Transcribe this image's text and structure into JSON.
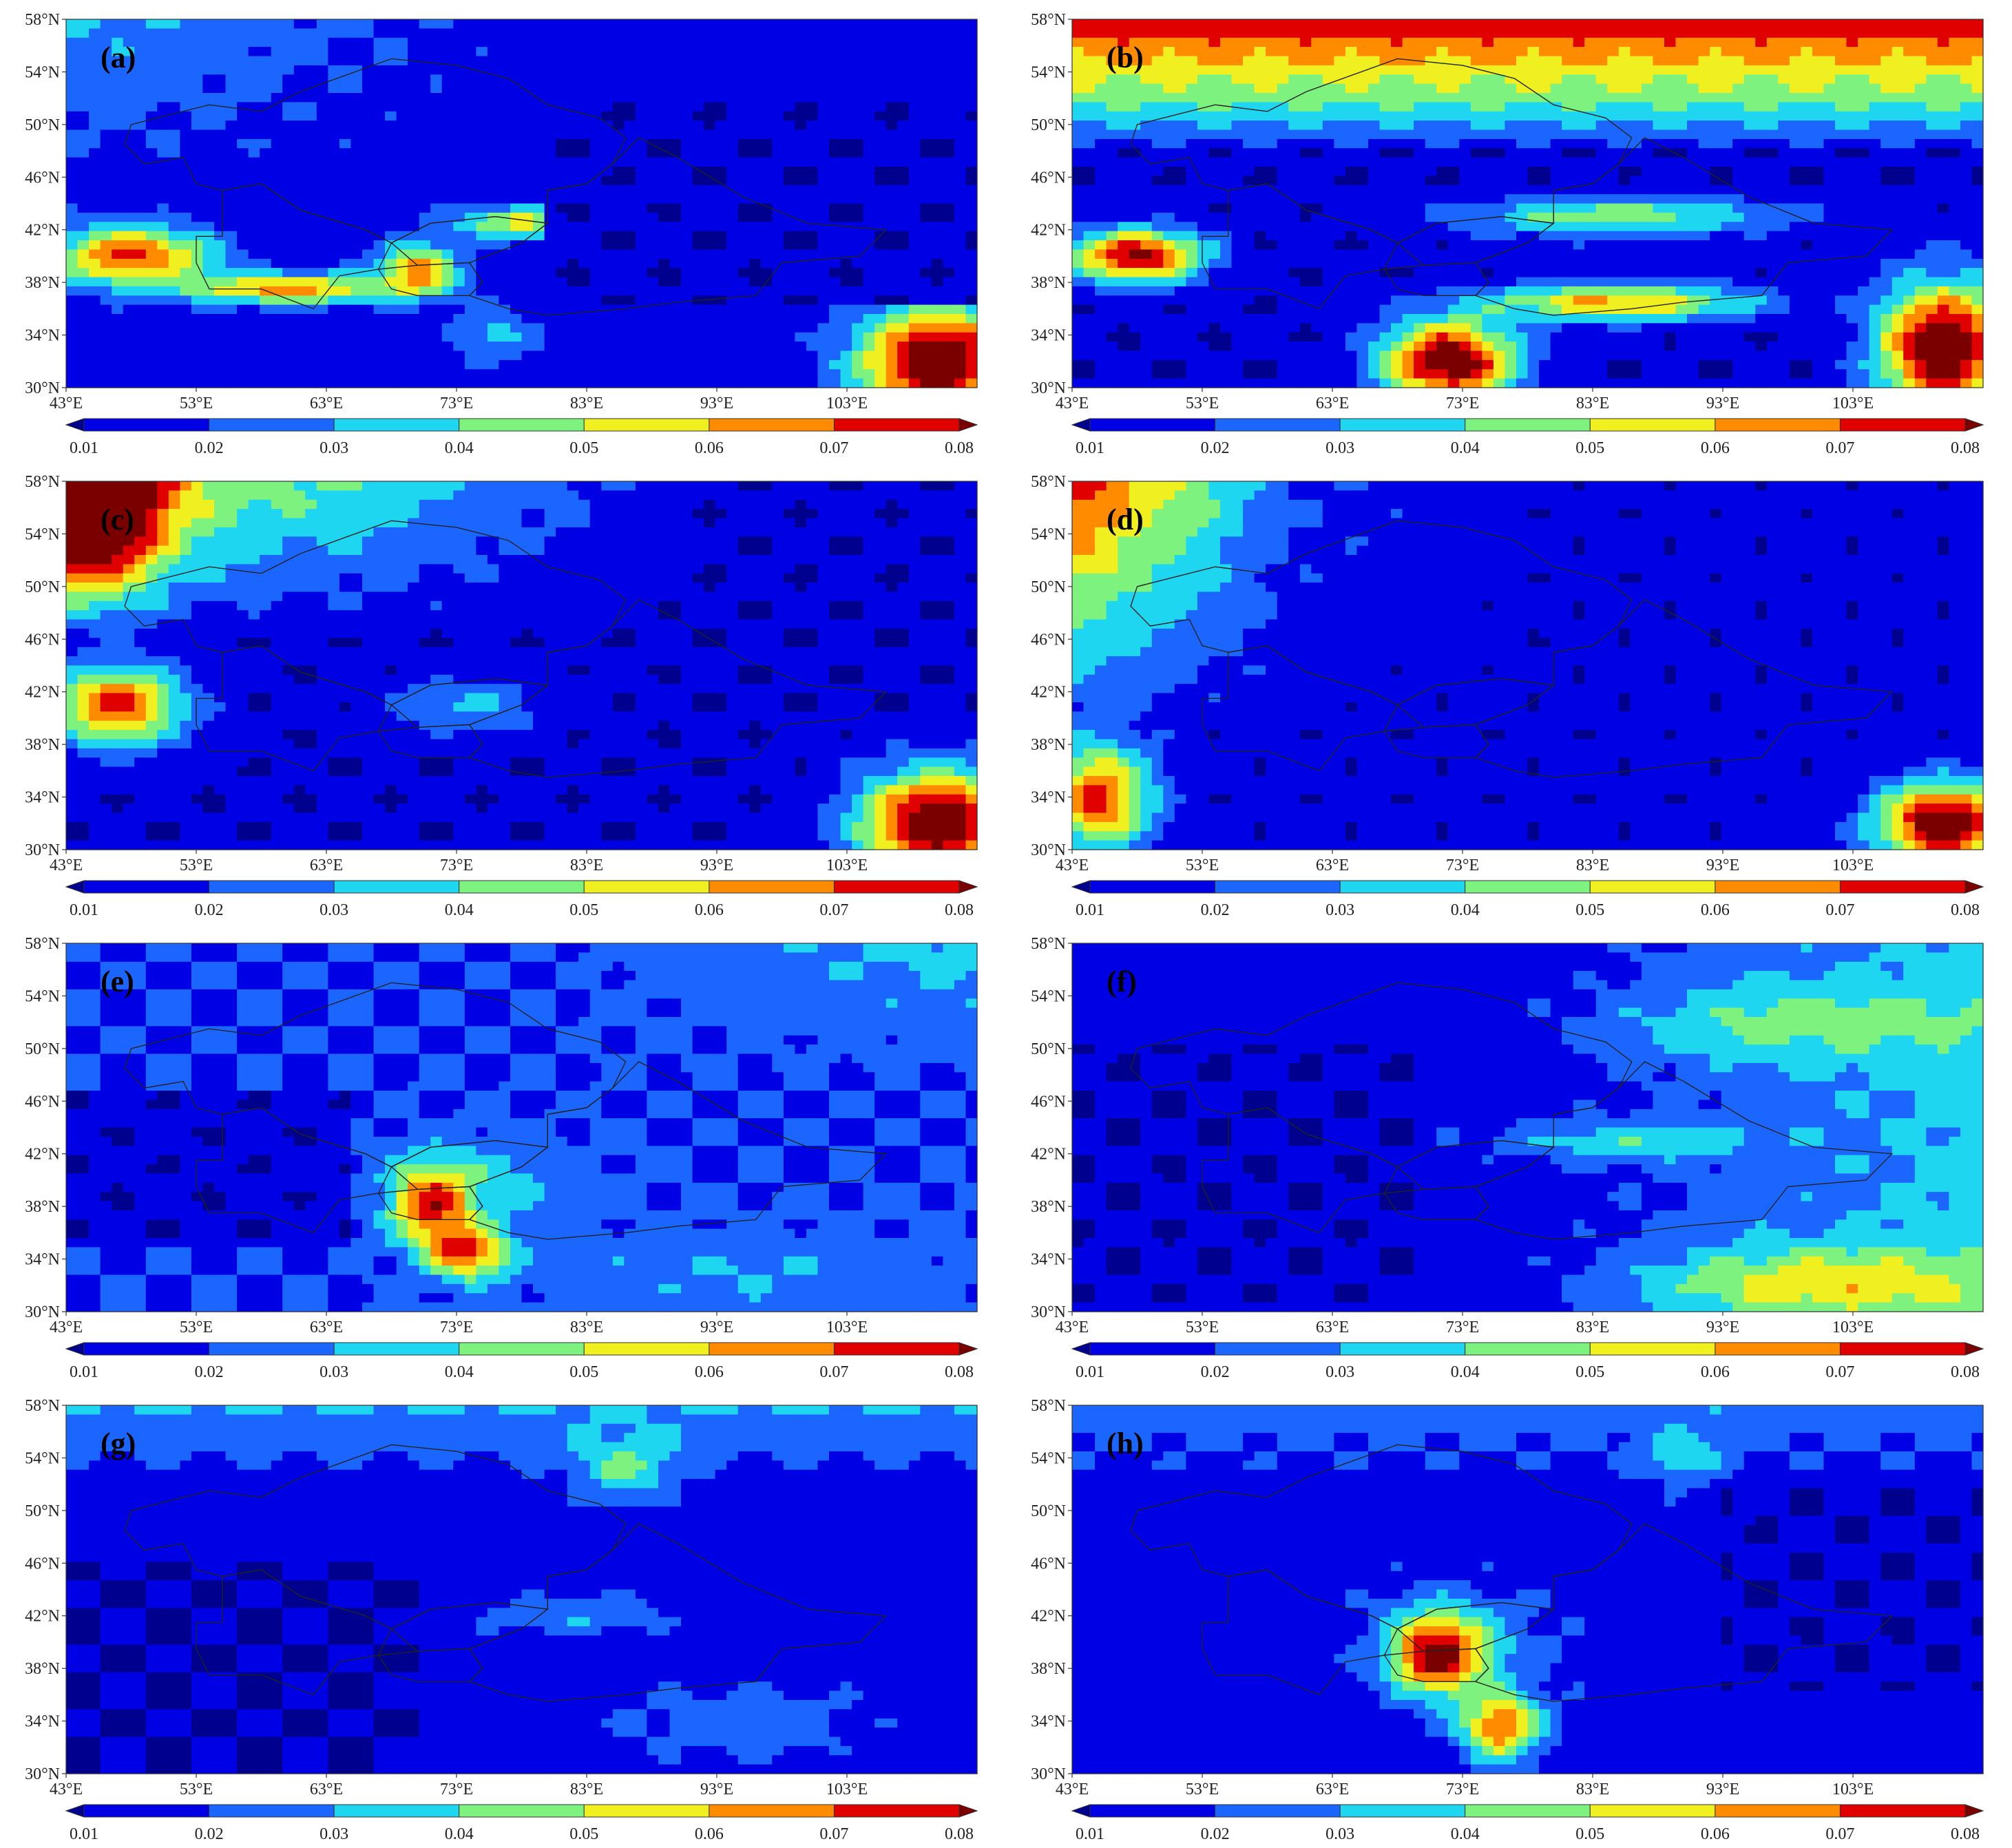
{
  "figure": {
    "colorbar": {
      "levels": [
        "0.01",
        "0.02",
        "0.03",
        "0.04",
        "0.05",
        "0.06",
        "0.07",
        "0.08"
      ],
      "colors": [
        "#00008f",
        "#0000e5",
        "#1a66ff",
        "#1fd6f0",
        "#7ef27f",
        "#f0f020",
        "#ff8c00",
        "#e00000",
        "#7a0000"
      ]
    },
    "lat_labels": [
      "58°N",
      "54°N",
      "50°N",
      "46°N",
      "42°N",
      "38°N",
      "34°N",
      "30°N"
    ],
    "lon_labels": [
      "43°E",
      "53°E",
      "63°E",
      "73°E",
      "83°E",
      "93°E",
      "103°E"
    ],
    "panels": [
      {
        "label": "(a)",
        "variant": "a"
      },
      {
        "label": "(b)",
        "variant": "b"
      },
      {
        "label": "(c)",
        "variant": "c"
      },
      {
        "label": "(d)",
        "variant": "d"
      },
      {
        "label": "(e)",
        "variant": "e"
      },
      {
        "label": "(f)",
        "variant": "f"
      },
      {
        "label": "(g)",
        "variant": "g"
      },
      {
        "label": "(h)",
        "variant": "h"
      }
    ]
  }
}
